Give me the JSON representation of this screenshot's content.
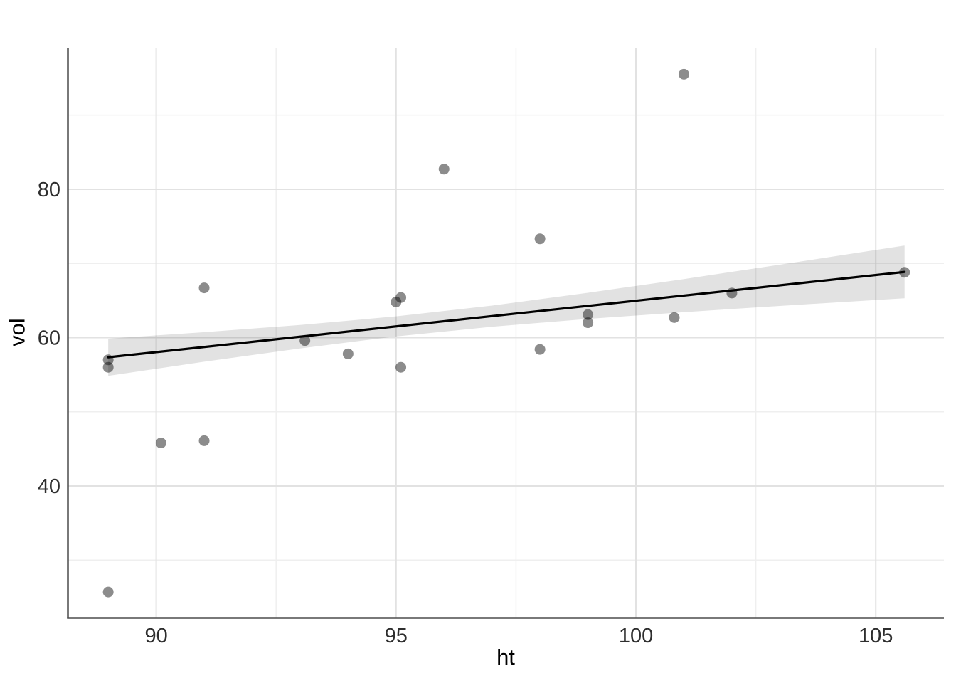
{
  "chart_data": {
    "type": "scatter",
    "title": "",
    "xlabel": "ht",
    "ylabel": "vol",
    "xlim": [
      88.16,
      106.42
    ],
    "ylim": [
      22.26,
      99.08
    ],
    "x_major_ticks": [
      90,
      95,
      100,
      105
    ],
    "x_minor_ticks": [
      92.5,
      97.5,
      102.5
    ],
    "y_major_ticks": [
      40,
      60,
      80
    ],
    "y_minor_ticks": [
      30,
      50,
      70,
      90
    ],
    "grid": "major and minor gridlines, white panel background",
    "legend": "none",
    "points": [
      [
        89.0,
        25.7
      ],
      [
        89.0,
        57.0
      ],
      [
        89.0,
        56.0
      ],
      [
        90.1,
        45.8
      ],
      [
        91.0,
        66.7
      ],
      [
        91.0,
        46.1
      ],
      [
        93.1,
        59.6
      ],
      [
        94.0,
        57.8
      ],
      [
        95.0,
        64.8
      ],
      [
        95.1,
        65.4
      ],
      [
        95.1,
        56.0
      ],
      [
        96.0,
        82.7
      ],
      [
        98.0,
        73.3
      ],
      [
        98.0,
        58.4
      ],
      [
        99.0,
        63.1
      ],
      [
        99.0,
        62.0
      ],
      [
        100.8,
        62.7
      ],
      [
        101.0,
        95.5
      ],
      [
        102.0,
        66.0
      ],
      [
        105.6,
        68.8
      ]
    ],
    "regression_line": {
      "x1": 89.0,
      "y1": 57.35,
      "x2": 105.6,
      "y2": 68.85
    },
    "confidence_band": [
      {
        "x": 89.0,
        "lo": 54.84,
        "hi": 59.86
      },
      {
        "x": 91.0,
        "lo": 56.75,
        "hi": 60.73
      },
      {
        "x": 93.0,
        "lo": 58.54,
        "hi": 61.7
      },
      {
        "x": 95.0,
        "lo": 60.16,
        "hi": 62.86
      },
      {
        "x": 97.0,
        "lo": 61.46,
        "hi": 64.32
      },
      {
        "x": 99.0,
        "lo": 62.52,
        "hi": 66.04
      },
      {
        "x": 101.0,
        "lo": 63.43,
        "hi": 67.89
      },
      {
        "x": 103.0,
        "lo": 64.27,
        "hi": 69.83
      },
      {
        "x": 105.6,
        "lo": 65.3,
        "hi": 72.4
      }
    ],
    "colors": {
      "point": "#000000",
      "point_opacity": 0.45,
      "regression_line": "#000000",
      "band": "#000000",
      "band_opacity": 0.115,
      "grid_major": "#e2e2e2",
      "grid_minor": "#efefef",
      "axis_line": "#4d4d4d",
      "tick_label": "#2e2e2e"
    }
  }
}
